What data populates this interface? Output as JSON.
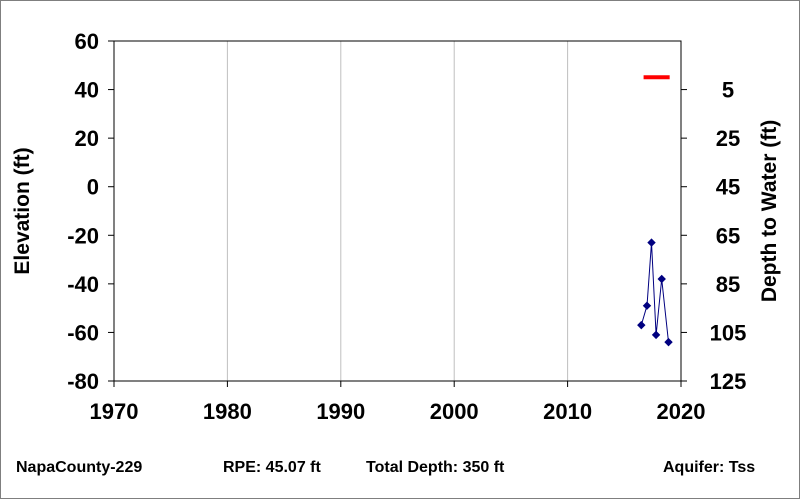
{
  "chart_data": {
    "type": "line",
    "title": "",
    "xlabel": "",
    "ylabel": "Elevation (ft)",
    "y2label": "Depth to Water (ft)",
    "xlim": [
      1970,
      2020
    ],
    "ylim": [
      -80,
      60
    ],
    "y2lim": [
      125,
      -15
    ],
    "x_ticks": [
      "1970",
      "1980",
      "1990",
      "2000",
      "2010",
      "2020"
    ],
    "y_ticks": [
      "60",
      "40",
      "20",
      "0",
      "-20",
      "-40",
      "-60",
      "-80"
    ],
    "y2_ticks": [
      "5",
      "25",
      "45",
      "65",
      "85",
      "105",
      "125"
    ],
    "grid": true,
    "series": [
      {
        "color": "#000080",
        "marker": "diamond",
        "x": [
          2016.5,
          2017.0,
          2017.4,
          2017.8,
          2018.3,
          2018.9
        ],
        "y": [
          -57,
          -49,
          -23,
          -61,
          -38,
          -64
        ]
      }
    ],
    "reference_line": {
      "color": "#ff0000",
      "x": [
        2016.7,
        2019.0
      ],
      "y": 45.07
    }
  },
  "footer": {
    "well": "NapaCounty-229",
    "rpe": "RPE: 45.07 ft",
    "depth": "Total Depth: 350 ft",
    "aquifer": "Aquifer: Tss"
  }
}
